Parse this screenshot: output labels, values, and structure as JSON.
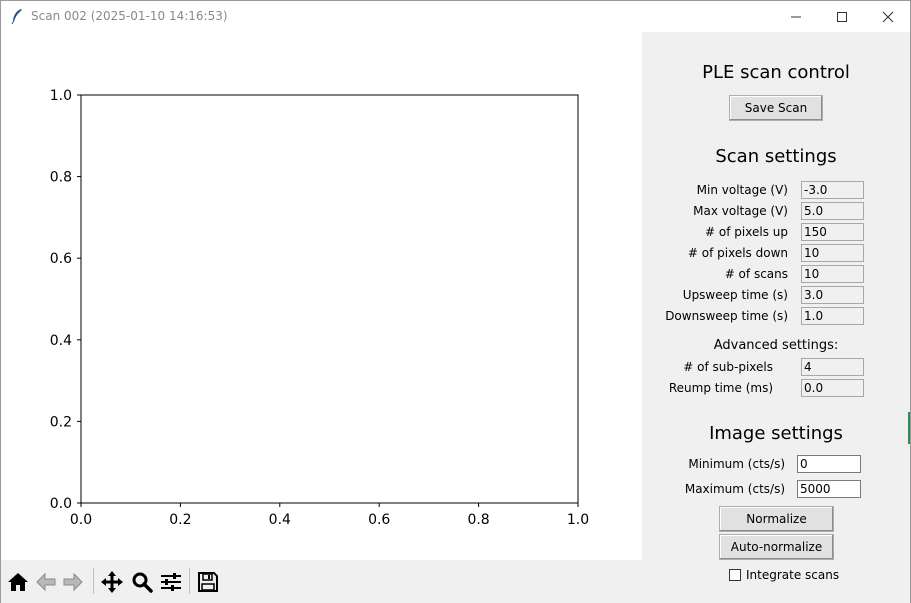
{
  "window": {
    "title": "Scan 002 (2025-01-10 14:16:53)"
  },
  "plot": {
    "x_ticks": [
      "0.0",
      "0.2",
      "0.4",
      "0.6",
      "0.8",
      "1.0"
    ],
    "y_ticks": [
      "0.0",
      "0.2",
      "0.4",
      "0.6",
      "0.8",
      "1.0"
    ]
  },
  "chart_data": {
    "type": "line",
    "series": [],
    "xlim": [
      0,
      1
    ],
    "ylim": [
      0,
      1
    ],
    "grid": false
  },
  "toolbar": {
    "icons": [
      "home-icon",
      "back-icon",
      "forward-icon",
      "pan-icon",
      "zoom-icon",
      "configure-icon",
      "save-icon"
    ]
  },
  "panel": {
    "title": "PLE scan control",
    "save_label": "Save Scan",
    "scan_settings_title": "Scan settings",
    "scan_settings": [
      {
        "label": "Min voltage (V)",
        "value": "-3.0"
      },
      {
        "label": "Max voltage (V)",
        "value": "5.0"
      },
      {
        "label": "# of pixels up",
        "value": "150"
      },
      {
        "label": "# of pixels down",
        "value": "10"
      },
      {
        "label": "# of scans",
        "value": "10"
      },
      {
        "label": "Upsweep time (s)",
        "value": "3.0"
      },
      {
        "label": "Downsweep time (s)",
        "value": "1.0"
      }
    ],
    "advanced_title": "Advanced settings:",
    "advanced_settings": [
      {
        "label": "# of sub-pixels",
        "value": "4"
      },
      {
        "label": "Reump time (ms)",
        "value": "0.0"
      }
    ],
    "image_settings_title": "Image settings",
    "image_settings": [
      {
        "label": "Minimum (cts/s)",
        "value": "0"
      },
      {
        "label": "Maximum (cts/s)",
        "value": "5000"
      }
    ],
    "normalize_label": "Normalize",
    "auto_normalize_label": "Auto-normalize",
    "integrate_label": "Integrate scans",
    "integrate_checked": false
  }
}
